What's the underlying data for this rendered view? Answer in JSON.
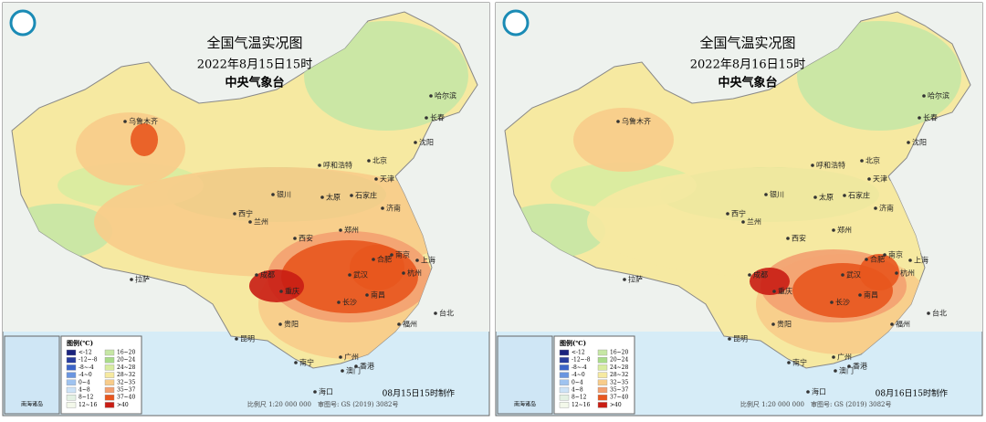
{
  "panels": [
    {
      "title": "全国气温实况图",
      "time": "2022年8月15日15时",
      "agency": "中央气象台",
      "cities": [
        "乌鲁木齐",
        "哈尔滨",
        "长春",
        "沈阳",
        "呼和浩特",
        "北京",
        "天津",
        "银川",
        "太原",
        "石家庄",
        "西宁",
        "兰州",
        "济南",
        "郑州",
        "西安",
        "合肥",
        "南京",
        "上海",
        "杭州",
        "武汉",
        "成都",
        "重庆",
        "拉萨",
        "长沙",
        "南昌",
        "福州",
        "台北",
        "贵阳",
        "昆明",
        "南宁",
        "广州",
        "香港",
        "澳门",
        "海口"
      ],
      "legend_title": "图例(℃)",
      "legend": [
        {
          "label": "<-12",
          "color": "#1a237e"
        },
        {
          "label": "-12~-8",
          "color": "#283d9e"
        },
        {
          "label": "-8~-4",
          "color": "#3b64c8"
        },
        {
          "label": "-4~0",
          "color": "#6a95e0"
        },
        {
          "label": "0~4",
          "color": "#9fc3f0"
        },
        {
          "label": "4~8",
          "color": "#cde3f7"
        },
        {
          "label": "8~12",
          "color": "#e3f1e3"
        },
        {
          "label": "12~16",
          "color": "#f3f8ea"
        },
        {
          "label": "16~20",
          "color": "#c6e7a5"
        },
        {
          "label": "20~24",
          "color": "#a9dc8a"
        },
        {
          "label": "24~28",
          "color": "#d8eca0"
        },
        {
          "label": "28~32",
          "color": "#f6e9a1"
        },
        {
          "label": "32~35",
          "color": "#f8cc8a"
        },
        {
          "label": "35~37",
          "color": "#f3a070"
        },
        {
          "label": "37~40",
          "color": "#e8561e"
        },
        {
          "label": ">40",
          "color": "#c91d14"
        }
      ],
      "inset": "南海诸岛",
      "made": "08月15日15时制作",
      "scale": "比例尺 1:20 000 000",
      "approval": "审图号: GS (2019) 3082号"
    },
    {
      "title": "全国气温实况图",
      "time": "2022年8月16日15时",
      "agency": "中央气象台",
      "cities": [
        "乌鲁木齐",
        "哈尔滨",
        "长春",
        "沈阳",
        "呼和浩特",
        "北京",
        "天津",
        "银川",
        "太原",
        "石家庄",
        "西宁",
        "兰州",
        "济南",
        "郑州",
        "西安",
        "合肥",
        "南京",
        "上海",
        "杭州",
        "武汉",
        "成都",
        "重庆",
        "拉萨",
        "长沙",
        "南昌",
        "福州",
        "台北",
        "贵阳",
        "昆明",
        "南宁",
        "广州",
        "香港",
        "澳门",
        "海口"
      ],
      "legend_title": "图例(℃)",
      "legend": [
        {
          "label": "<-12",
          "color": "#1a237e"
        },
        {
          "label": "-12~-8",
          "color": "#283d9e"
        },
        {
          "label": "-8~-4",
          "color": "#3b64c8"
        },
        {
          "label": "-4~0",
          "color": "#6a95e0"
        },
        {
          "label": "0~4",
          "color": "#9fc3f0"
        },
        {
          "label": "4~8",
          "color": "#cde3f7"
        },
        {
          "label": "8~12",
          "color": "#e3f1e3"
        },
        {
          "label": "12~16",
          "color": "#f3f8ea"
        },
        {
          "label": "16~20",
          "color": "#c6e7a5"
        },
        {
          "label": "20~24",
          "color": "#a9dc8a"
        },
        {
          "label": "24~28",
          "color": "#d8eca0"
        },
        {
          "label": "28~32",
          "color": "#f6e9a1"
        },
        {
          "label": "32~35",
          "color": "#f8cc8a"
        },
        {
          "label": "35~37",
          "color": "#f3a070"
        },
        {
          "label": "37~40",
          "color": "#e8561e"
        },
        {
          "label": ">40",
          "color": "#c91d14"
        }
      ],
      "inset": "南海诸岛",
      "made": "08月16日15时制作",
      "scale": "比例尺 1:20 000 000",
      "approval": "审图号: GS (2019) 3082号"
    }
  ]
}
